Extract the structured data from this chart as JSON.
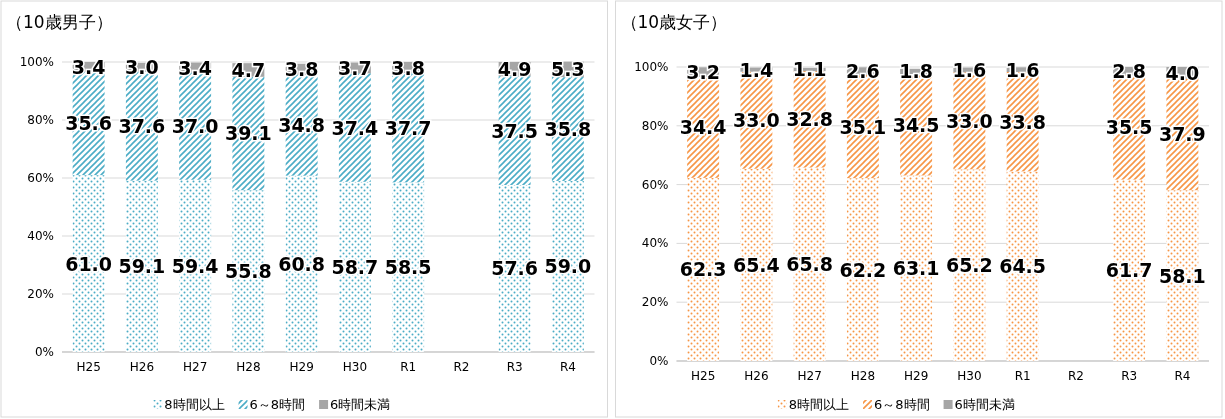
{
  "chart_data": [
    {
      "type": "bar",
      "stacked": true,
      "title": "（10歳男子）",
      "categories": [
        "H25",
        "H26",
        "H27",
        "H28",
        "H29",
        "H30",
        "R1",
        "R2",
        "R3",
        "R4"
      ],
      "series": [
        {
          "name": "8時間以上",
          "color": "#4bacc6",
          "values": [
            61.0,
            59.1,
            59.4,
            55.8,
            60.8,
            58.7,
            58.5,
            null,
            57.6,
            59.0
          ],
          "value_labels": [
            "61.0",
            "59.1",
            "59.4",
            "55.8",
            "60.8",
            "58.7",
            "58.5",
            null,
            "57.6",
            "59.0"
          ]
        },
        {
          "name": "6～8時間",
          "color": "#4bacc6",
          "values": [
            35.6,
            37.6,
            37.0,
            39.1,
            34.8,
            37.4,
            37.7,
            null,
            37.5,
            35.8
          ],
          "value_labels": [
            "35.6",
            "37.6",
            "37.0",
            "39.1",
            "34.8",
            "37.4",
            "37.7",
            null,
            "37.5",
            "35.8"
          ]
        },
        {
          "name": "6時間未満",
          "color": "#a6a6a6",
          "values": [
            3.4,
            3.0,
            3.4,
            4.7,
            3.8,
            3.7,
            3.8,
            null,
            4.9,
            5.3
          ],
          "value_labels": [
            "3.4",
            "3.0",
            "3.4",
            "4.7",
            "3.8",
            "3.7",
            "3.8",
            null,
            "4.9",
            "5.3"
          ]
        }
      ],
      "ylim": [
        0,
        100
      ],
      "yticks": [
        {
          "value": 0,
          "label": "0%"
        },
        {
          "value": 20,
          "label": "20%"
        },
        {
          "value": 40,
          "label": "40%"
        },
        {
          "value": 60,
          "label": "60%"
        },
        {
          "value": 80,
          "label": "80%"
        },
        {
          "value": 100,
          "label": "100%"
        }
      ],
      "grid": "y",
      "legend": "bottom"
    },
    {
      "type": "bar",
      "stacked": true,
      "title": "（10歳女子）",
      "categories": [
        "H25",
        "H26",
        "H27",
        "H28",
        "H29",
        "H30",
        "R1",
        "R2",
        "R3",
        "R4"
      ],
      "series": [
        {
          "name": "8時間以上",
          "color": "#f79646",
          "values": [
            62.3,
            65.4,
            65.8,
            62.2,
            63.1,
            65.2,
            64.5,
            null,
            61.7,
            58.1
          ],
          "value_labels": [
            "62.3",
            "65.4",
            "65.8",
            "62.2",
            "63.1",
            "65.2",
            "64.5",
            null,
            "61.7",
            "58.1"
          ]
        },
        {
          "name": "6～8時間",
          "color": "#f79646",
          "values": [
            34.4,
            33.0,
            32.8,
            35.1,
            34.5,
            33.0,
            33.8,
            null,
            35.5,
            37.9
          ],
          "value_labels": [
            "34.4",
            "33.0",
            "32.8",
            "35.1",
            "34.5",
            "33.0",
            "33.8",
            null,
            "35.5",
            "37.9"
          ]
        },
        {
          "name": "6時間未満",
          "color": "#a6a6a6",
          "values": [
            3.2,
            1.4,
            1.1,
            2.6,
            1.8,
            1.6,
            1.6,
            null,
            2.8,
            4.0
          ],
          "value_labels": [
            "3.2",
            "1.4",
            "1.1",
            "2.6",
            "1.8",
            "1.6",
            "1.6",
            null,
            "2.8",
            "4.0"
          ]
        }
      ],
      "ylim": [
        0,
        100
      ],
      "yticks": [
        {
          "value": 0,
          "label": "0%"
        },
        {
          "value": 20,
          "label": "20%"
        },
        {
          "value": 40,
          "label": "40%"
        },
        {
          "value": 60,
          "label": "60%"
        },
        {
          "value": 80,
          "label": "80%"
        },
        {
          "value": 100,
          "label": "100%"
        }
      ],
      "grid": "y",
      "legend": "bottom"
    }
  ]
}
